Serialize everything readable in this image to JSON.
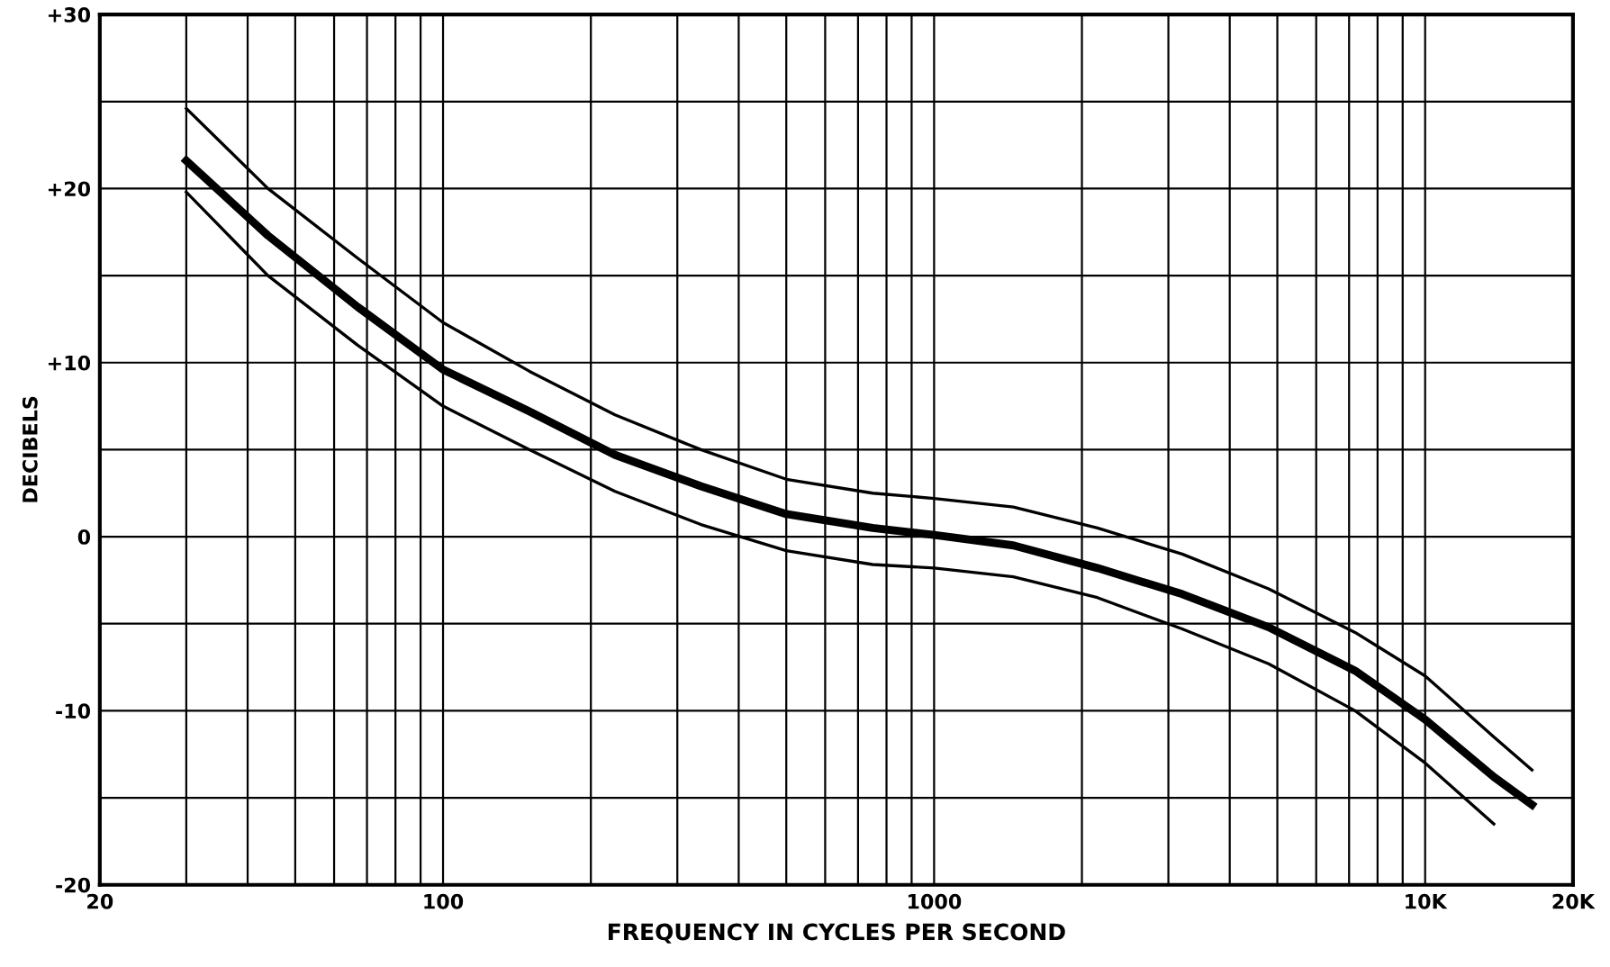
{
  "chart_data": {
    "type": "line",
    "xlabel": "FREQUENCY IN CYCLES PER SECOND",
    "ylabel": "DECIBELS",
    "log": "x",
    "xlim": [
      20,
      20000
    ],
    "ylim": [
      -20,
      30
    ],
    "xticks": [
      20,
      {
        "value": 30,
        "label": null
      },
      {
        "value": 40,
        "label": null
      },
      {
        "value": 50,
        "label": null
      },
      {
        "value": 60,
        "label": null
      },
      {
        "value": 70,
        "label": null
      },
      {
        "value": 80,
        "label": null
      },
      {
        "value": 90,
        "label": null
      },
      100,
      {
        "value": 200,
        "label": null
      },
      {
        "value": 300,
        "label": null
      },
      {
        "value": 400,
        "label": null
      },
      {
        "value": 500,
        "label": null
      },
      {
        "value": 600,
        "label": null
      },
      {
        "value": 700,
        "label": null
      },
      {
        "value": 800,
        "label": null
      },
      {
        "value": 900,
        "label": null
      },
      1000,
      {
        "value": 2000,
        "label": null
      },
      {
        "value": 3000,
        "label": null
      },
      {
        "value": 4000,
        "label": null
      },
      {
        "value": 5000,
        "label": null
      },
      {
        "value": 6000,
        "label": null
      },
      {
        "value": 7000,
        "label": null
      },
      {
        "value": 8000,
        "label": null
      },
      {
        "value": 9000,
        "label": null
      },
      {
        "value": 10000,
        "label": "10K"
      },
      {
        "value": 20000,
        "label": "20K"
      }
    ],
    "yticks": [
      -20,
      {
        "value": -15,
        "label": null
      },
      -10,
      {
        "value": -5,
        "label": null
      },
      0,
      {
        "value": 5,
        "label": null
      },
      {
        "value": 10,
        "label": "+10"
      },
      {
        "value": 15,
        "label": null
      },
      {
        "value": 20,
        "label": "+20"
      },
      {
        "value": 25,
        "label": null
      },
      {
        "value": 30,
        "label": "+30"
      }
    ],
    "grid": true,
    "marker": "none",
    "line_style": "solid",
    "series": [
      {
        "color": "#000000",
        "x": [
          30,
          44,
          67,
          100,
          150,
          224,
          335,
          500,
          750,
          1000,
          1450,
          2150,
          3200,
          4800,
          7200,
          10000,
          13800,
          16500
        ],
        "values": [
          21.6,
          17.3,
          13.2,
          9.6,
          7.2,
          4.7,
          2.9,
          1.3,
          0.5,
          0.1,
          -0.5,
          -1.8,
          -3.3,
          -5.2,
          -7.7,
          -10.5,
          -13.8,
          -15.4
        ]
      },
      {
        "color": "#000000",
        "x": [
          30,
          44,
          67,
          100,
          150,
          224,
          335,
          500,
          750,
          1000,
          1450,
          2150,
          3200,
          4800,
          7200,
          10000,
          13800,
          16500
        ],
        "values": [
          24.6,
          20,
          16,
          12.3,
          9.5,
          7,
          5,
          3.3,
          2.5,
          2.2,
          1.7,
          0.5,
          -1,
          -3,
          -5.5,
          -8,
          -11.5,
          -13.4
        ]
      },
      {
        "color": "#000000",
        "x": [
          30,
          44,
          67,
          100,
          150,
          224,
          335,
          500,
          750,
          1000,
          1450,
          2150,
          3200,
          4800,
          7200,
          10000,
          13800
        ],
        "values": [
          19.8,
          15,
          11,
          7.5,
          5,
          2.6,
          0.7,
          -0.8,
          -1.6,
          -1.8,
          -2.3,
          -3.5,
          -5.3,
          -7.3,
          -10,
          -13,
          -16.5
        ]
      }
    ]
  }
}
